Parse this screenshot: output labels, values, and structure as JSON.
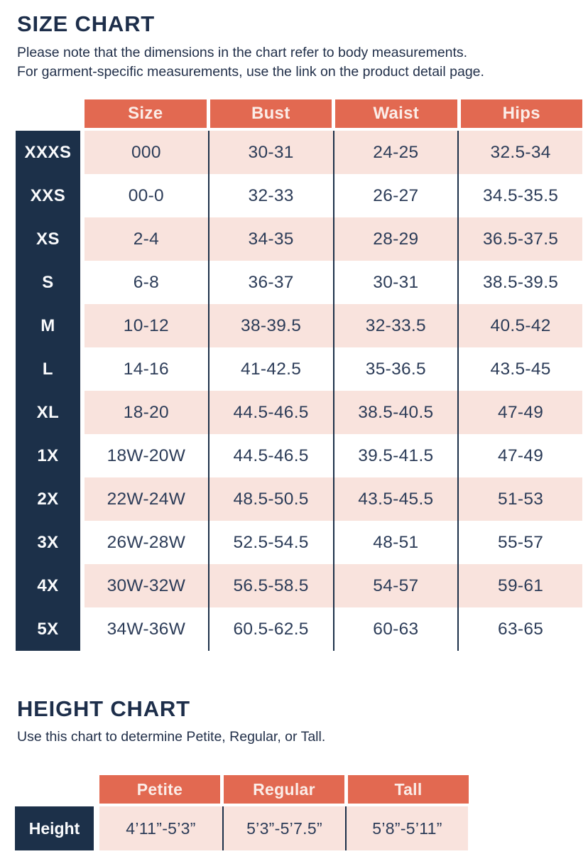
{
  "colors": {
    "salmon": "#E26951",
    "navy": "#1C3049",
    "pink_row": "#F9E3DD",
    "title_text": "#1D2E4A",
    "body_text": "#2C3C58"
  },
  "size_chart": {
    "title": "SIZE CHART",
    "intro_line1": "Please note that the dimensions in the chart refer to body measurements.",
    "intro_line2": "For garment-specific measurements, use the link on the product detail page.",
    "columns": [
      "Size",
      "Bust",
      "Waist",
      "Hips"
    ],
    "rows": [
      {
        "label": "XXXS",
        "size": "000",
        "bust": "30-31",
        "waist": "24-25",
        "hips": "32.5-34"
      },
      {
        "label": "XXS",
        "size": "00-0",
        "bust": "32-33",
        "waist": "26-27",
        "hips": "34.5-35.5"
      },
      {
        "label": "XS",
        "size": "2-4",
        "bust": "34-35",
        "waist": "28-29",
        "hips": "36.5-37.5"
      },
      {
        "label": "S",
        "size": "6-8",
        "bust": "36-37",
        "waist": "30-31",
        "hips": "38.5-39.5"
      },
      {
        "label": "M",
        "size": "10-12",
        "bust": "38-39.5",
        "waist": "32-33.5",
        "hips": "40.5-42"
      },
      {
        "label": "L",
        "size": "14-16",
        "bust": "41-42.5",
        "waist": "35-36.5",
        "hips": "43.5-45"
      },
      {
        "label": "XL",
        "size": "18-20",
        "bust": "44.5-46.5",
        "waist": "38.5-40.5",
        "hips": "47-49"
      },
      {
        "label": "1X",
        "size": "18W-20W",
        "bust": "44.5-46.5",
        "waist": "39.5-41.5",
        "hips": "47-49"
      },
      {
        "label": "2X",
        "size": "22W-24W",
        "bust": "48.5-50.5",
        "waist": "43.5-45.5",
        "hips": "51-53"
      },
      {
        "label": "3X",
        "size": "26W-28W",
        "bust": "52.5-54.5",
        "waist": "48-51",
        "hips": "55-57"
      },
      {
        "label": "4X",
        "size": "30W-32W",
        "bust": "56.5-58.5",
        "waist": "54-57",
        "hips": "59-61"
      },
      {
        "label": "5X",
        "size": "34W-36W",
        "bust": "60.5-62.5",
        "waist": "60-63",
        "hips": "63-65"
      }
    ]
  },
  "height_chart": {
    "title": "HEIGHT CHART",
    "intro": "Use this chart to determine Petite, Regular, or Tall.",
    "columns": [
      "Petite",
      "Regular",
      "Tall"
    ],
    "row_label": "Height",
    "values": [
      "4’11”-5’3”",
      "5’3”-5’7.5”",
      "5’8”-5’11”"
    ]
  }
}
